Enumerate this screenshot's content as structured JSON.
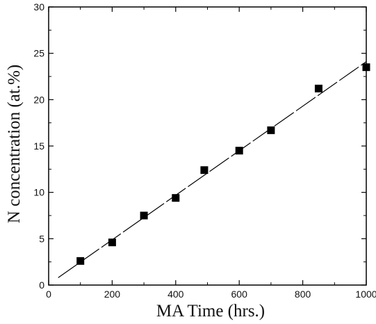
{
  "chart_data": {
    "type": "scatter",
    "xlabel": "MA Time (hrs.)",
    "ylabel": "N concentration (at.%)",
    "xlim": [
      0,
      1000
    ],
    "ylim": [
      0,
      30
    ],
    "x_ticks": [
      0,
      200,
      400,
      600,
      800,
      1000
    ],
    "y_ticks": [
      0,
      5,
      10,
      15,
      20,
      25,
      30
    ],
    "grid": false,
    "legend": "none",
    "series": [
      {
        "marker": "filled-square",
        "x": [
          100,
          200,
          300,
          400,
          490,
          600,
          700,
          850,
          1000
        ],
        "y": [
          2.6,
          4.6,
          7.5,
          9.4,
          12.4,
          14.5,
          16.7,
          21.2,
          23.5
        ]
      }
    ],
    "fit_line": {
      "style": "long-dashed",
      "x": [
        30,
        1000
      ],
      "y": [
        0.8,
        24.1
      ]
    },
    "colors": {
      "marker": "#000000",
      "axis": "#000000",
      "line": "#000000"
    }
  }
}
